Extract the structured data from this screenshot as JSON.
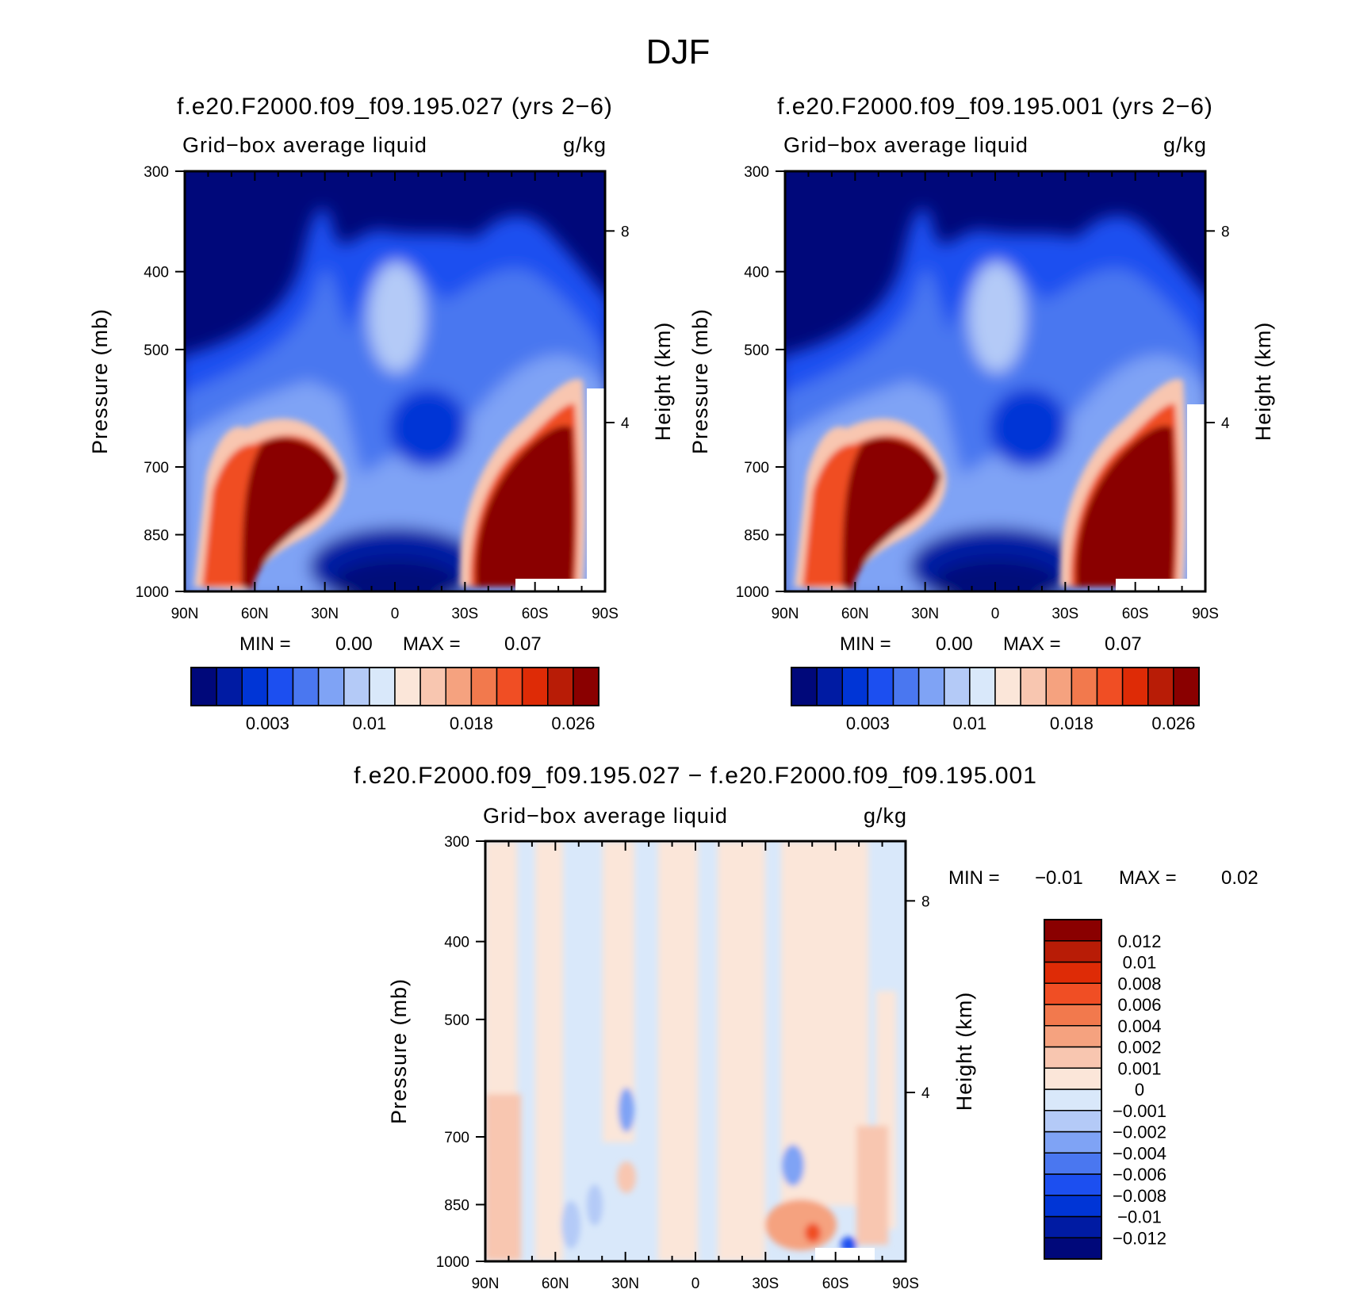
{
  "title": "DJF",
  "colors": {
    "abs_levels": [
      "#00087a",
      "#001ba3",
      "#0035d6",
      "#1c4ff0",
      "#4a77f0",
      "#7fa3f5",
      "#b4caf7",
      "#d9e8fa",
      "#fbe6d9",
      "#f8c6b0",
      "#f5a27f",
      "#f2794d",
      "#f04e24",
      "#de2b06",
      "#b81c06",
      "#8a0000"
    ],
    "diff_levels": [
      "#00087a",
      "#001ba3",
      "#0035d6",
      "#1c4ff0",
      "#4a77f0",
      "#7fa3f5",
      "#b4caf7",
      "#d9e8fa",
      "#fbe6d9",
      "#f8c6b0",
      "#f5a27f",
      "#f2794d",
      "#f04e24",
      "#de2b06",
      "#b81c06",
      "#8a0000"
    ]
  },
  "panels": [
    {
      "id": "case",
      "title": "f.e20.F2000.f09_f09.195.027 (yrs 2−6)",
      "variable": "Grid−box average liquid",
      "units": "g/kg",
      "min_label": "MIN =",
      "min_value": "0.00",
      "max_label": "MAX =",
      "max_value": "0.07"
    },
    {
      "id": "control",
      "title": "f.e20.F2000.f09_f09.195.001 (yrs 2−6)",
      "variable": "Grid−box average liquid",
      "units": "g/kg",
      "min_label": "MIN =",
      "min_value": "0.00",
      "max_label": "MAX =",
      "max_value": "0.07"
    },
    {
      "id": "diff",
      "title": "f.e20.F2000.f09_f09.195.027 − f.e20.F2000.f09_f09.195.001",
      "variable": "Grid−box average liquid",
      "units": "g/kg",
      "min_label": "MIN =",
      "min_value": "−0.01",
      "max_label": "MAX =",
      "max_value": "0.02"
    }
  ],
  "chart_data": [
    {
      "type": "heatmap",
      "title": "f.e20.F2000.f09_f09.195.027 (yrs 2−6)",
      "xlabel": "",
      "ylabel": "Pressure (mb)",
      "ylabel_right": "Height (km)",
      "x_ticks": [
        "90N",
        "60N",
        "30N",
        "0",
        "30S",
        "60S",
        "90S"
      ],
      "y_ticks": [
        300,
        400,
        500,
        700,
        850,
        1000
      ],
      "y_right_ticks": [
        8,
        4
      ],
      "y_scale": "log",
      "colorbar_labels": [
        "0.003",
        "0.01",
        "0.018",
        "0.026"
      ],
      "min": 0.0,
      "max": 0.07
    },
    {
      "type": "heatmap",
      "title": "f.e20.F2000.f09_f09.195.001 (yrs 2−6)",
      "xlabel": "",
      "ylabel": "Pressure (mb)",
      "ylabel_right": "Height (km)",
      "x_ticks": [
        "90N",
        "60N",
        "30N",
        "0",
        "30S",
        "60S",
        "90S"
      ],
      "y_ticks": [
        300,
        400,
        500,
        700,
        850,
        1000
      ],
      "y_right_ticks": [
        8,
        4
      ],
      "y_scale": "log",
      "colorbar_labels": [
        "0.003",
        "0.01",
        "0.018",
        "0.026"
      ],
      "min": 0.0,
      "max": 0.07
    },
    {
      "type": "heatmap",
      "title": "f.e20.F2000.f09_f09.195.027 − f.e20.F2000.f09_f09.195.001",
      "xlabel": "",
      "ylabel": "Pressure (mb)",
      "ylabel_right": "Height (km)",
      "x_ticks": [
        "90N",
        "60N",
        "30N",
        "0",
        "30S",
        "60S",
        "90S"
      ],
      "y_ticks": [
        300,
        400,
        500,
        700,
        850,
        1000
      ],
      "y_right_ticks": [
        8,
        4
      ],
      "y_scale": "log",
      "colorbar_labels": [
        "0.012",
        "0.01",
        "0.008",
        "0.006",
        "0.004",
        "0.002",
        "0.001",
        "0",
        "−0.001",
        "−0.002",
        "−0.004",
        "−0.006",
        "−0.008",
        "−0.01",
        "−0.012"
      ],
      "min": -0.01,
      "max": 0.02
    }
  ]
}
